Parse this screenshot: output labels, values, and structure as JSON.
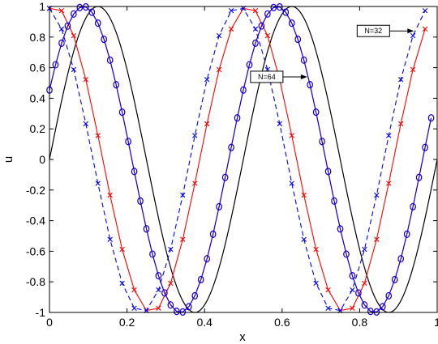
{
  "chart_data": {
    "type": "line",
    "xlabel": "x",
    "ylabel": "u",
    "xlim": [
      0,
      1
    ],
    "ylim": [
      -1,
      1
    ],
    "x_ticks": [
      "0",
      "0.2",
      "0.4",
      "0.6",
      "0.8",
      "1"
    ],
    "y_ticks": [
      "1",
      "0.8",
      "0.6",
      "0.4",
      "0.2",
      "0",
      "-0.2",
      "-0.4",
      "-0.6",
      "-0.8",
      "-1"
    ],
    "grid": false,
    "series": [
      {
        "color": "#000000",
        "style": "solid",
        "marker": "none",
        "function": "sin(4*pi*x)"
      },
      {
        "color": "#ff0000",
        "style": "solid",
        "marker": "x",
        "function": "sin(4*pi*(x+0.1125))",
        "points": 32
      },
      {
        "color": "#0000ff",
        "style": "dashed",
        "marker": "x",
        "function": "sin(4*pi*(x+0.1375))",
        "points": 32
      },
      {
        "color": "#ff0000",
        "style": "solid",
        "marker": "o",
        "function": "sin(4*pi*(x+0.0375))",
        "points": 64
      },
      {
        "color": "#0000ff",
        "style": "solid",
        "marker": "o",
        "function": "sin(4*pi*(x+0.0375))",
        "points": 64
      }
    ],
    "annotations": [
      {
        "text": "N=32",
        "x": 0.94,
        "y": 0.84
      },
      {
        "text": "N=64",
        "x": 0.665,
        "y": 0.54
      }
    ]
  }
}
